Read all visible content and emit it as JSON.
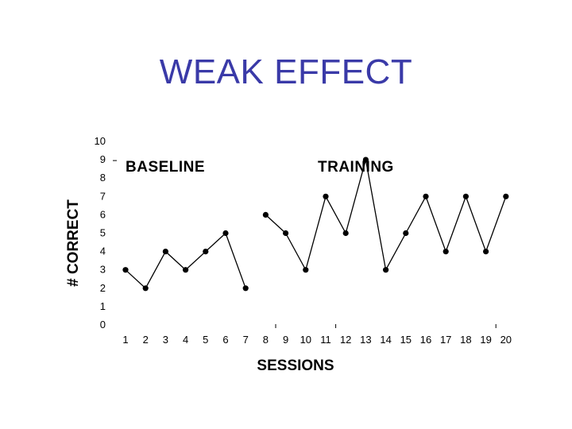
{
  "slide": {
    "title": "WEAK EFFECT"
  },
  "chart_data": {
    "type": "line",
    "title": "",
    "xlabel": "SESSIONS",
    "ylabel": "# CORRECT",
    "x_ticks": [
      1,
      2,
      3,
      4,
      5,
      6,
      7,
      8,
      9,
      10,
      11,
      12,
      13,
      14,
      15,
      16,
      17,
      18,
      19,
      20
    ],
    "y_ticks": [
      0,
      1,
      2,
      3,
      4,
      5,
      6,
      7,
      8,
      9,
      10
    ],
    "ylim": [
      0,
      10
    ],
    "xlim": [
      1,
      20
    ],
    "grid": false,
    "phase_labels": [
      "BASELINE",
      "TRAINING"
    ],
    "series": [
      {
        "phase": "BASELINE",
        "color": "#000000",
        "x": [
          1,
          2,
          3,
          4,
          5,
          6,
          7
        ],
        "y": [
          3,
          2,
          4,
          3,
          4,
          5,
          2
        ]
      },
      {
        "phase": "TRAINING",
        "color": "#000000",
        "x": [
          8,
          9,
          10,
          11,
          12,
          13,
          14,
          15,
          16,
          17,
          18,
          19,
          20
        ],
        "y": [
          6,
          5,
          3,
          7,
          5,
          9,
          3,
          5,
          7,
          4,
          7,
          4,
          7
        ]
      }
    ]
  }
}
